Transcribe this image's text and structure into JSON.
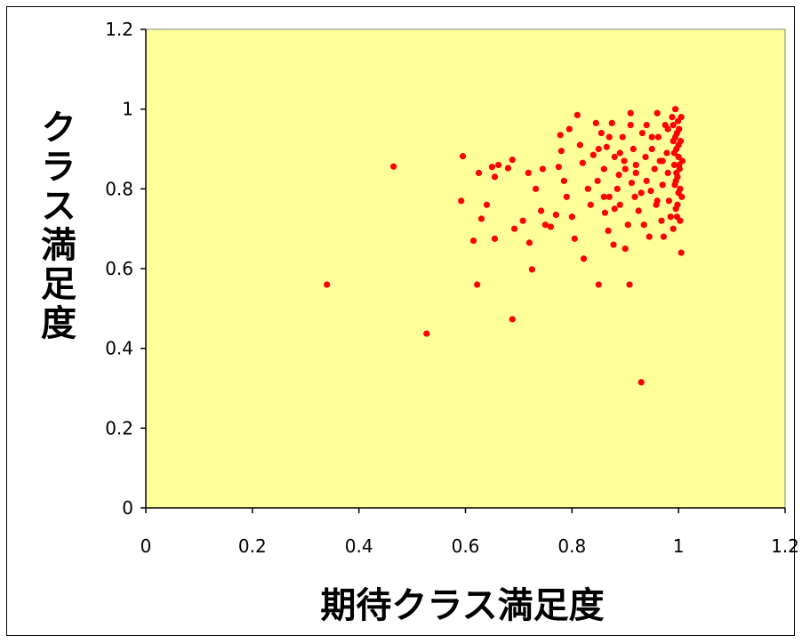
{
  "chart_data": {
    "type": "scatter",
    "title": "",
    "xlabel": "期待クラス満足度",
    "ylabel": "クラス満足度",
    "xlim": [
      0,
      1.2
    ],
    "ylim": [
      0,
      1.2
    ],
    "xticks": [
      "0",
      "0.2",
      "0.4",
      "0.6",
      "0.8",
      "1",
      "1.2"
    ],
    "yticks": [
      "0",
      "0.2",
      "0.4",
      "0.6",
      "0.8",
      "1",
      "1.2"
    ],
    "grid": false,
    "legend": "none",
    "colors": {
      "plot_bg": "#ffff99",
      "point": "#ff0000",
      "frame": "#000000"
    },
    "points": [
      [
        0.34,
        0.56
      ],
      [
        0.465,
        0.856
      ],
      [
        0.527,
        0.437
      ],
      [
        0.595,
        0.882
      ],
      [
        0.592,
        0.77
      ],
      [
        0.615,
        0.67
      ],
      [
        0.622,
        0.56
      ],
      [
        0.625,
        0.84
      ],
      [
        0.63,
        0.725
      ],
      [
        0.64,
        0.76
      ],
      [
        0.65,
        0.855
      ],
      [
        0.655,
        0.83
      ],
      [
        0.655,
        0.675
      ],
      [
        0.662,
        0.86
      ],
      [
        0.68,
        0.852
      ],
      [
        0.688,
        0.873
      ],
      [
        0.692,
        0.7
      ],
      [
        0.688,
        0.473
      ],
      [
        0.708,
        0.72
      ],
      [
        0.718,
        0.84
      ],
      [
        0.72,
        0.665
      ],
      [
        0.725,
        0.598
      ],
      [
        0.732,
        0.8
      ],
      [
        0.742,
        0.745
      ],
      [
        0.745,
        0.85
      ],
      [
        0.75,
        0.71
      ],
      [
        0.76,
        0.705
      ],
      [
        0.77,
        0.735
      ],
      [
        0.775,
        0.855
      ],
      [
        0.778,
        0.935
      ],
      [
        0.78,
        0.895
      ],
      [
        0.785,
        0.82
      ],
      [
        0.79,
        0.78
      ],
      [
        0.795,
        0.95
      ],
      [
        0.8,
        0.73
      ],
      [
        0.805,
        0.675
      ],
      [
        0.81,
        0.985
      ],
      [
        0.815,
        0.91
      ],
      [
        0.82,
        0.865
      ],
      [
        0.822,
        0.625
      ],
      [
        0.83,
        0.8
      ],
      [
        0.835,
        0.76
      ],
      [
        0.84,
        0.885
      ],
      [
        0.845,
        0.965
      ],
      [
        0.848,
        0.82
      ],
      [
        0.85,
        0.56
      ],
      [
        0.855,
        0.94
      ],
      [
        0.86,
        0.85
      ],
      [
        0.862,
        0.74
      ],
      [
        0.865,
        0.905
      ],
      [
        0.868,
        0.695
      ],
      [
        0.87,
        0.78
      ],
      [
        0.875,
        0.965
      ],
      [
        0.878,
        0.66
      ],
      [
        0.88,
        0.88
      ],
      [
        0.885,
        0.8
      ],
      [
        0.888,
        0.835
      ],
      [
        0.89,
        0.76
      ],
      [
        0.895,
        0.93
      ],
      [
        0.898,
        0.87
      ],
      [
        0.9,
        0.65
      ],
      [
        0.905,
        0.71
      ],
      [
        0.908,
        0.56
      ],
      [
        0.91,
        0.99
      ],
      [
        0.912,
        0.815
      ],
      [
        0.915,
        0.9
      ],
      [
        0.918,
        0.78
      ],
      [
        0.92,
        0.86
      ],
      [
        0.925,
        0.745
      ],
      [
        0.93,
        0.315
      ],
      [
        0.932,
        0.94
      ],
      [
        0.935,
        0.71
      ],
      [
        0.938,
        0.88
      ],
      [
        0.94,
        0.82
      ],
      [
        0.945,
        0.68
      ],
      [
        0.948,
        0.795
      ],
      [
        0.95,
        0.9
      ],
      [
        0.955,
        0.85
      ],
      [
        0.958,
        0.76
      ],
      [
        0.96,
        0.99
      ],
      [
        0.962,
        0.93
      ],
      [
        0.965,
        0.87
      ],
      [
        0.968,
        0.72
      ],
      [
        0.97,
        0.81
      ],
      [
        0.972,
        0.68
      ],
      [
        0.975,
        0.96
      ],
      [
        0.978,
        0.89
      ],
      [
        0.98,
        0.84
      ],
      [
        0.982,
        0.77
      ],
      [
        0.985,
        0.73
      ],
      [
        0.988,
        0.98
      ],
      [
        0.99,
        0.92
      ],
      [
        0.992,
        0.86
      ],
      [
        0.993,
        0.81
      ],
      [
        0.994,
        1.0
      ],
      [
        0.995,
        0.75
      ],
      [
        0.996,
        0.9
      ],
      [
        0.997,
        0.94
      ],
      [
        0.998,
        0.83
      ],
      [
        0.999,
        0.97
      ],
      [
        1.0,
        0.88
      ],
      [
        1.0,
        0.79
      ],
      [
        1.001,
        0.95
      ],
      [
        1.002,
        0.85
      ],
      [
        1.003,
        0.72
      ],
      [
        1.004,
        0.92
      ],
      [
        1.005,
        0.64
      ],
      [
        1.005,
        0.98
      ],
      [
        1.006,
        0.78
      ],
      [
        1.007,
        0.87
      ],
      [
        0.99,
        0.96
      ],
      [
        0.995,
        0.82
      ],
      [
        1.0,
        0.91
      ],
      [
        0.998,
        0.76
      ],
      [
        0.992,
        0.89
      ],
      [
        0.996,
        0.84
      ],
      [
        1.003,
        0.8
      ],
      [
        0.997,
        0.73
      ],
      [
        1.001,
        0.86
      ],
      [
        0.994,
        0.93
      ],
      [
        0.91,
        0.96
      ],
      [
        0.92,
        0.84
      ],
      [
        0.95,
        0.93
      ],
      [
        0.96,
        0.77
      ],
      [
        0.97,
        0.87
      ],
      [
        0.85,
        0.9
      ],
      [
        0.86,
        0.78
      ],
      [
        0.87,
        0.93
      ],
      [
        0.88,
        0.75
      ],
      [
        0.89,
        0.89
      ],
      [
        0.9,
        0.85
      ],
      [
        0.93,
        0.79
      ],
      [
        0.94,
        0.96
      ],
      [
        0.98,
        0.95
      ],
      [
        0.99,
        0.7
      ]
    ]
  }
}
